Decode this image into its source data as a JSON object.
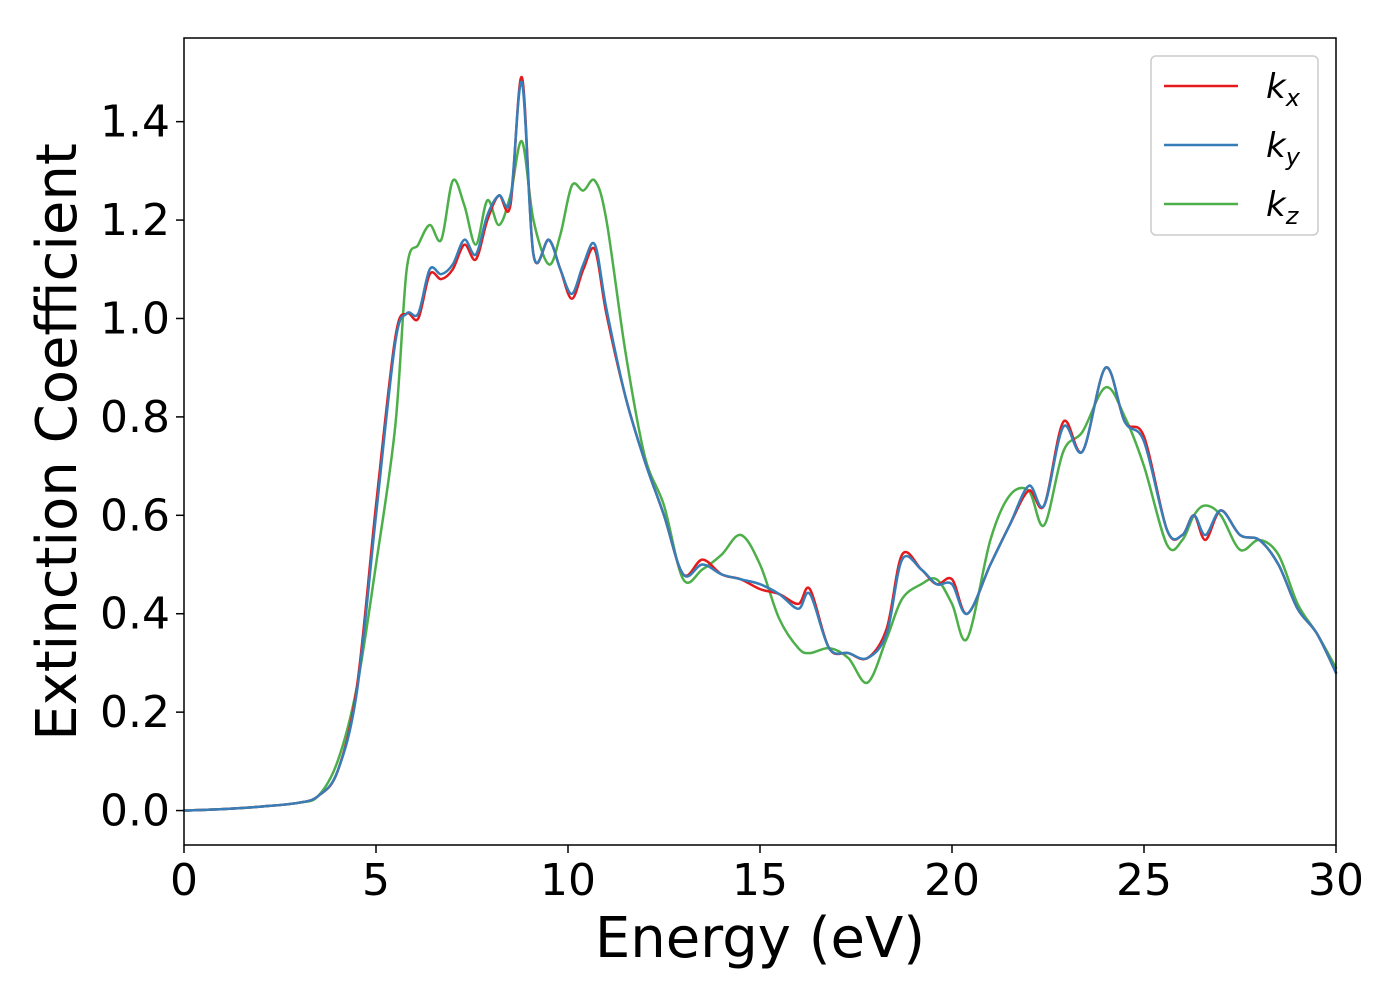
{
  "chart_data": {
    "type": "line",
    "title": "",
    "xlabel": "Energy (eV)",
    "ylabel": "Extinction Coefficient",
    "xlim": [
      0,
      30
    ],
    "ylim": [
      -0.07,
      1.57
    ],
    "xticks": [
      0,
      5,
      10,
      15,
      20,
      25,
      30
    ],
    "xtick_labels": [
      "0",
      "5",
      "10",
      "15",
      "20",
      "25",
      "30"
    ],
    "yticks": [
      0.0,
      0.2,
      0.4,
      0.6,
      0.8,
      1.0,
      1.2,
      1.4
    ],
    "ytick_labels": [
      "0.0",
      "0.2",
      "0.4",
      "0.6",
      "0.8",
      "1.0",
      "1.2",
      "1.4"
    ],
    "grid": false,
    "legend_position": "top-right",
    "series": [
      {
        "name": "k_x",
        "legend_base": "k",
        "legend_sub": "x",
        "color": "#e41a1c",
        "x": [
          0,
          1,
          2,
          3,
          3.5,
          4,
          4.5,
          5,
          5.5,
          5.8,
          6.1,
          6.4,
          6.7,
          7.0,
          7.3,
          7.6,
          7.9,
          8.2,
          8.5,
          8.8,
          9.1,
          9.5,
          9.8,
          10.1,
          10.4,
          10.7,
          11.0,
          11.5,
          12.0,
          12.5,
          13.0,
          13.5,
          14.0,
          14.5,
          15.0,
          15.5,
          16.0,
          16.3,
          16.8,
          17.3,
          17.8,
          18.3,
          18.7,
          19.2,
          19.6,
          20.0,
          20.4,
          21.0,
          21.5,
          22.0,
          22.4,
          22.9,
          23.4,
          24.0,
          24.5,
          25.0,
          25.6,
          26.0,
          26.3,
          26.6,
          27.0,
          27.5,
          28.0,
          28.5,
          29.0,
          29.5,
          30.0
        ],
        "y": [
          0.0,
          0.003,
          0.008,
          0.016,
          0.03,
          0.08,
          0.25,
          0.62,
          0.96,
          1.01,
          1.0,
          1.09,
          1.08,
          1.1,
          1.15,
          1.12,
          1.2,
          1.25,
          1.23,
          1.49,
          1.13,
          1.16,
          1.1,
          1.04,
          1.1,
          1.14,
          1.01,
          0.84,
          0.71,
          0.6,
          0.48,
          0.51,
          0.48,
          0.47,
          0.45,
          0.44,
          0.42,
          0.45,
          0.33,
          0.32,
          0.31,
          0.37,
          0.52,
          0.49,
          0.46,
          0.47,
          0.4,
          0.5,
          0.58,
          0.65,
          0.62,
          0.79,
          0.73,
          0.9,
          0.79,
          0.76,
          0.57,
          0.56,
          0.6,
          0.55,
          0.61,
          0.56,
          0.55,
          0.5,
          0.41,
          0.36,
          0.28
        ]
      },
      {
        "name": "k_y",
        "legend_base": "k",
        "legend_sub": "y",
        "color": "#377eb8",
        "x": [
          0,
          1,
          2,
          3,
          3.5,
          4,
          4.5,
          5,
          5.5,
          5.8,
          6.1,
          6.4,
          6.7,
          7.0,
          7.3,
          7.6,
          7.9,
          8.2,
          8.5,
          8.8,
          9.1,
          9.5,
          9.8,
          10.1,
          10.4,
          10.7,
          11.0,
          11.5,
          12.0,
          12.5,
          13.0,
          13.5,
          14.0,
          14.5,
          15.0,
          15.5,
          16.0,
          16.3,
          16.8,
          17.3,
          17.8,
          18.3,
          18.7,
          19.2,
          19.6,
          20.0,
          20.4,
          21.0,
          21.5,
          22.0,
          22.4,
          22.9,
          23.4,
          24.0,
          24.5,
          25.0,
          25.6,
          26.0,
          26.3,
          26.6,
          27.0,
          27.5,
          28.0,
          28.5,
          29.0,
          29.5,
          30.0
        ],
        "y": [
          0.0,
          0.003,
          0.008,
          0.016,
          0.03,
          0.08,
          0.24,
          0.6,
          0.95,
          1.01,
          1.01,
          1.1,
          1.09,
          1.11,
          1.16,
          1.13,
          1.21,
          1.25,
          1.24,
          1.48,
          1.13,
          1.16,
          1.1,
          1.05,
          1.11,
          1.15,
          1.02,
          0.84,
          0.71,
          0.6,
          0.48,
          0.5,
          0.48,
          0.47,
          0.46,
          0.44,
          0.41,
          0.44,
          0.33,
          0.32,
          0.31,
          0.36,
          0.51,
          0.49,
          0.46,
          0.46,
          0.4,
          0.5,
          0.58,
          0.66,
          0.62,
          0.78,
          0.73,
          0.9,
          0.79,
          0.75,
          0.57,
          0.56,
          0.6,
          0.56,
          0.61,
          0.56,
          0.55,
          0.5,
          0.41,
          0.36,
          0.28
        ]
      },
      {
        "name": "k_z",
        "legend_base": "k",
        "legend_sub": "z",
        "color": "#4daf4a",
        "x": [
          0,
          1,
          2,
          3,
          3.5,
          4,
          4.5,
          5,
          5.5,
          5.8,
          6.1,
          6.4,
          6.7,
          7.0,
          7.3,
          7.6,
          7.9,
          8.2,
          8.5,
          8.8,
          9.1,
          9.5,
          9.8,
          10.1,
          10.4,
          10.7,
          11.0,
          11.5,
          12.0,
          12.5,
          13.0,
          13.5,
          14.0,
          14.5,
          15.0,
          15.5,
          16.0,
          16.3,
          16.8,
          17.3,
          17.8,
          18.3,
          18.7,
          19.2,
          19.6,
          20.0,
          20.4,
          21.0,
          21.5,
          22.0,
          22.4,
          22.9,
          23.4,
          24.0,
          24.5,
          25.0,
          25.6,
          26.0,
          26.3,
          26.6,
          27.0,
          27.5,
          28.0,
          28.5,
          29.0,
          29.5,
          30.0
        ],
        "y": [
          0.0,
          0.003,
          0.008,
          0.016,
          0.03,
          0.1,
          0.25,
          0.5,
          0.78,
          1.1,
          1.15,
          1.19,
          1.16,
          1.28,
          1.23,
          1.15,
          1.24,
          1.19,
          1.25,
          1.36,
          1.2,
          1.11,
          1.17,
          1.27,
          1.26,
          1.28,
          1.2,
          0.93,
          0.72,
          0.62,
          0.47,
          0.49,
          0.52,
          0.56,
          0.5,
          0.39,
          0.33,
          0.32,
          0.33,
          0.31,
          0.26,
          0.35,
          0.43,
          0.46,
          0.47,
          0.42,
          0.35,
          0.55,
          0.64,
          0.65,
          0.58,
          0.73,
          0.77,
          0.86,
          0.8,
          0.7,
          0.54,
          0.55,
          0.6,
          0.62,
          0.6,
          0.53,
          0.55,
          0.52,
          0.42,
          0.36,
          0.29
        ]
      }
    ]
  }
}
